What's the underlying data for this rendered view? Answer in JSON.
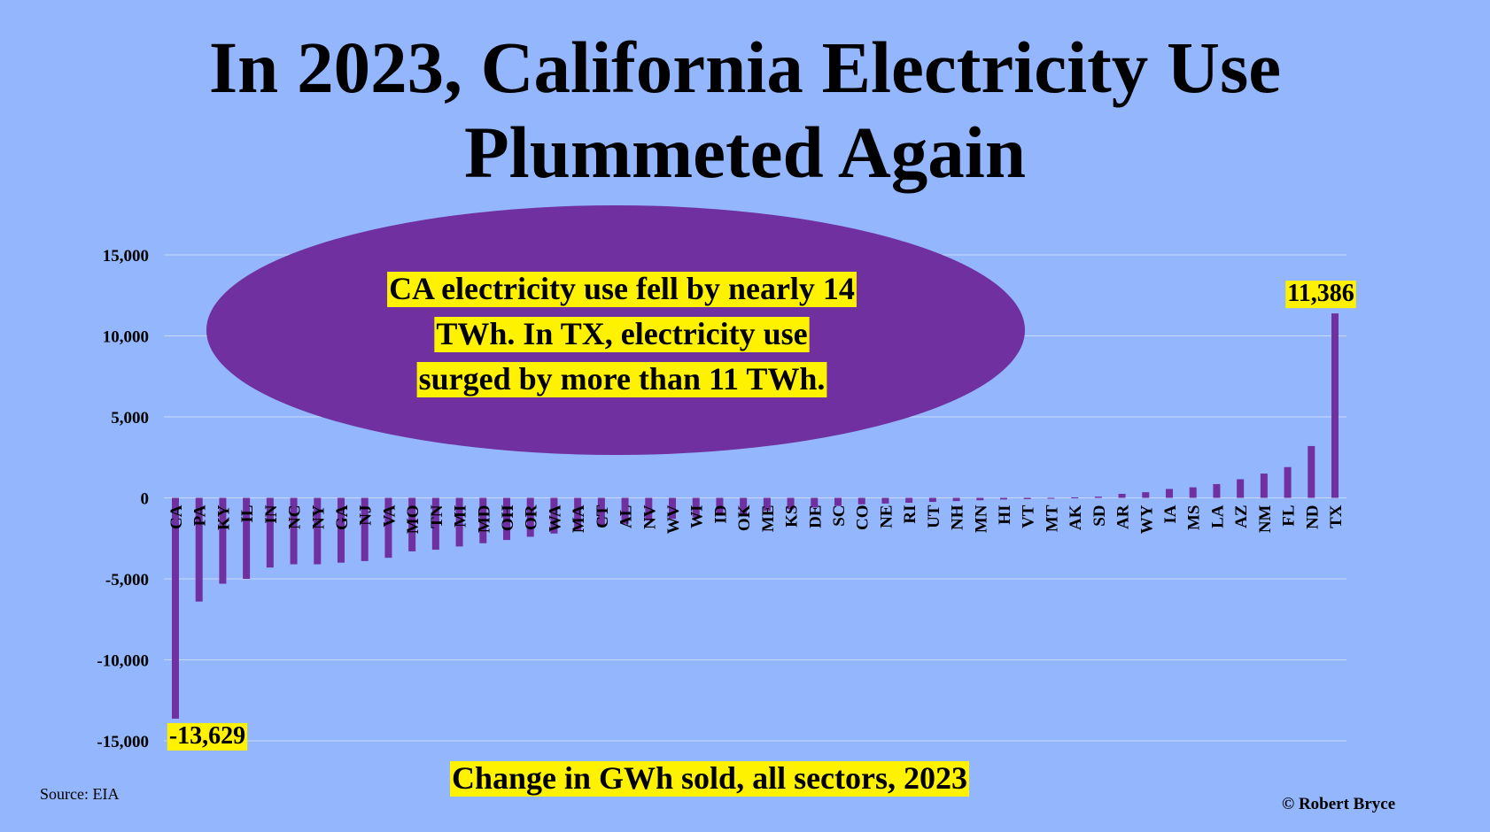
{
  "title": {
    "line1": "In 2023, California Electricity Use",
    "line2": "Plummeted Again"
  },
  "callout": {
    "lines": [
      "CA electricity use fell by nearly 14",
      "TWh. In TX, electricity use",
      "surged by more than 11 TWh."
    ]
  },
  "source": "Source: EIA",
  "credit": "© Robert Bryce",
  "colors": {
    "background": "#93b6fc",
    "bar": "#7030a0",
    "callout_fill": "#7030a0",
    "highlight": "#fff200"
  },
  "chart_data": {
    "type": "bar",
    "title": "",
    "xlabel": "Change in GWh sold, all sectors, 2023",
    "ylabel": "",
    "ylim": [
      -15000,
      15000
    ],
    "yticks": [
      15000,
      10000,
      5000,
      0,
      -5000,
      -10000,
      -15000
    ],
    "ytick_labels": [
      "15,000",
      "10,000",
      "5,000",
      "0",
      "-5,000",
      "-10,000",
      "-15,000"
    ],
    "grid": true,
    "categories": [
      "CA",
      "PA",
      "KY",
      "IL",
      "IN",
      "NC",
      "NY",
      "GA",
      "NJ",
      "VA",
      "MO",
      "TN",
      "MI",
      "MD",
      "OH",
      "OR",
      "WA",
      "MA",
      "CT",
      "AL",
      "NV",
      "WV",
      "WI",
      "ID",
      "OK",
      "ME",
      "KS",
      "DE",
      "SC",
      "CO",
      "NE",
      "RI",
      "UT",
      "NH",
      "MN",
      "HI",
      "VT",
      "MT",
      "AK",
      "SD",
      "AR",
      "WY",
      "IA",
      "MS",
      "LA",
      "AZ",
      "NM",
      "FL",
      "ND",
      "TX"
    ],
    "values": [
      -13629,
      -6400,
      -5300,
      -5000,
      -4300,
      -4100,
      -4100,
      -4000,
      -3900,
      -3700,
      -3300,
      -3200,
      -3000,
      -2800,
      -2600,
      -2400,
      -2200,
      -2000,
      -1800,
      -1600,
      -1400,
      -1300,
      -1200,
      -1100,
      -1000,
      -800,
      -700,
      -600,
      -500,
      -400,
      -350,
      -300,
      -250,
      -200,
      -150,
      -100,
      -80,
      -50,
      30,
      80,
      250,
      350,
      550,
      650,
      850,
      1150,
      1500,
      1900,
      3200,
      11386
    ],
    "data_labels": {
      "CA": "-13,629",
      "TX": "11,386"
    }
  }
}
